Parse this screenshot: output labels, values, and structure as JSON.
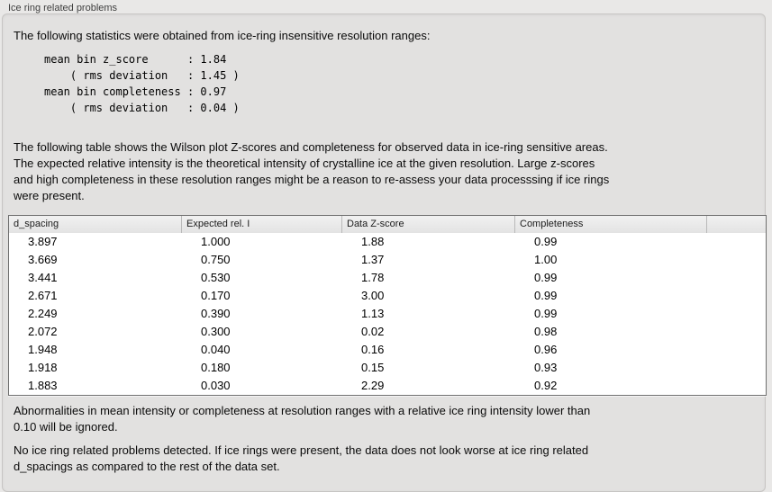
{
  "panel": {
    "group_label": "Ice ring related problems"
  },
  "intro": {
    "text": "The following statistics were obtained from ice-ring insensitive resolution ranges:"
  },
  "stats_block": "mean bin z_score      : 1.84\n    ( rms deviation   : 1.45 )\nmean bin completeness : 0.97\n    ( rms deviation   : 0.04 )",
  "stats": {
    "mean_bin_z_score": "1.84",
    "z_score_rms_deviation": "1.45",
    "mean_bin_completeness": "0.97",
    "completeness_rms_deviation": "0.04"
  },
  "table_intro": {
    "text": "The following table shows the Wilson plot Z-scores and completeness for observed data in ice-ring sensitive areas.\nThe expected relative intensity is the theoretical intensity of crystalline ice at the given resolution. Large z-scores\nand high completeness in these resolution ranges might be a reason to re-assess your data processsing if ice rings\nwere present."
  },
  "table": {
    "headers": [
      "d_spacing",
      "Expected rel. I",
      "Data Z-score",
      "Completeness",
      ""
    ],
    "rows": [
      [
        "3.897",
        "1.000",
        "1.88",
        "0.99"
      ],
      [
        "3.669",
        "0.750",
        "1.37",
        "1.00"
      ],
      [
        "3.441",
        "0.530",
        "1.78",
        "0.99"
      ],
      [
        "2.671",
        "0.170",
        "3.00",
        "0.99"
      ],
      [
        "2.249",
        "0.390",
        "1.13",
        "0.99"
      ],
      [
        "2.072",
        "0.300",
        "0.02",
        "0.98"
      ],
      [
        "1.948",
        "0.040",
        "0.16",
        "0.96"
      ],
      [
        "1.918",
        "0.180",
        "0.15",
        "0.93"
      ],
      [
        "1.883",
        "0.030",
        "2.29",
        "0.92"
      ]
    ]
  },
  "notes": {
    "ignore_note": "Abnormalities in mean intensity or completeness at resolution ranges with a relative ice ring intensity lower than\n0.10 will be ignored.",
    "conclusion": "No ice ring related problems detected. If ice rings were present, the data does not look worse at ice ring related\nd_spacings as compared to the rest of the data set."
  },
  "colors": {
    "panel_background": "#e2e1e0",
    "page_background": "#e9e8e7",
    "table_border": "#6f6f6f",
    "table_background": "#ffffff",
    "header_separator": "#b9b9b9"
  }
}
